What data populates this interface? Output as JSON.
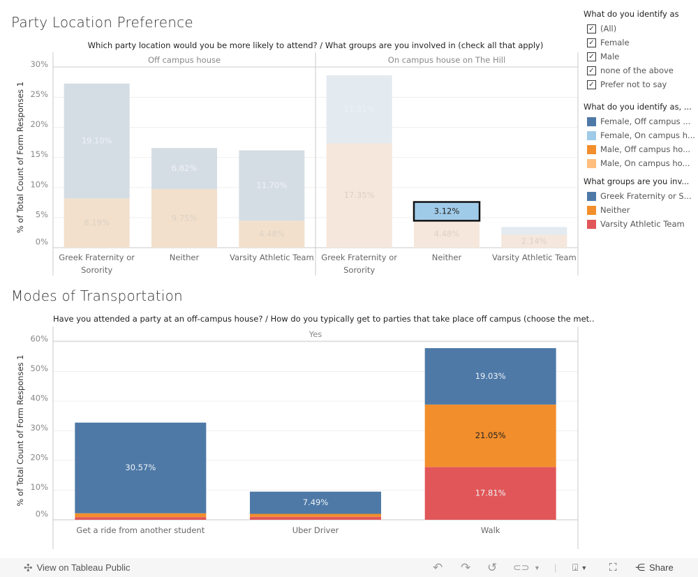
{
  "top_section": {
    "title": "Party Location Preference",
    "header": "Which party location would you be more likely to attend?  /  What groups are you involved in (check all that apply)",
    "y_axis_label": "% of Total Count of Form Responses 1",
    "y_ticks": [
      "0%",
      "5%",
      "10%",
      "15%",
      "20%",
      "25%",
      "30%"
    ],
    "panes": [
      "Off campus house",
      "On campus house on The Hill"
    ]
  },
  "bottom_section": {
    "title": "Modes of Transportation",
    "header": "Have you attended a party at an off-campus house?  /  How do you typically get to parties that take place off campus (choose the met..",
    "y_axis_label": "% of Total Count of Form Responses 1",
    "y_ticks": [
      "0%",
      "10%",
      "20%",
      "30%",
      "40%",
      "50%",
      "60%"
    ],
    "panes": [
      "Yes"
    ]
  },
  "filter": {
    "title": "What do you identify as",
    "options": [
      {
        "label": "(All)",
        "checked": true
      },
      {
        "label": "Female",
        "checked": true
      },
      {
        "label": "Male",
        "checked": true
      },
      {
        "label": "none of the above",
        "checked": true
      },
      {
        "label": "Prefer not to say",
        "checked": true
      }
    ]
  },
  "legend1": {
    "title": "What do you identify as, ...",
    "items": [
      {
        "label": "Female, Off campus ...",
        "color": "#4e79a7"
      },
      {
        "label": "Female, On campus h...",
        "color": "#a0cbe8"
      },
      {
        "label": "Male, Off campus ho...",
        "color": "#f28e2b"
      },
      {
        "label": "Male, On campus ho...",
        "color": "#ffbe7d"
      }
    ]
  },
  "legend2": {
    "title": "What groups are you inv...",
    "items": [
      {
        "label": "Greek Fraternity or S...",
        "color": "#4e79a7"
      },
      {
        "label": "Neither",
        "color": "#f28e2b"
      },
      {
        "label": "Varsity Athletic Team",
        "color": "#e15759"
      }
    ]
  },
  "toolbar": {
    "view_label": "View on Tableau Public",
    "share_label": "Share"
  },
  "chart_data": [
    {
      "type": "bar",
      "stacked": true,
      "title": "Party Location Preference",
      "xlabel": "",
      "ylabel": "% of Total Count of Form Responses 1",
      "ylim": [
        0,
        30
      ],
      "grid": true,
      "panes": [
        {
          "name": "Off campus house",
          "categories": [
            "Greek Fraternity or Sorority",
            "Neither",
            "Varsity Athletic Team"
          ],
          "series": [
            {
              "name": "Male",
              "color": "#f2e0cc",
              "values": [
                8.19,
                9.75,
                4.48
              ],
              "labels": [
                "8.19%",
                "9.75%",
                "4.48%"
              ]
            },
            {
              "name": "Female",
              "color": "#d5dde4",
              "values": [
                19.1,
                6.82,
                11.7
              ],
              "labels": [
                "19.10%",
                "6.82%",
                "11.70%"
              ]
            }
          ]
        },
        {
          "name": "On campus house on The Hill",
          "categories": [
            "Greek Fraternity or Sorority",
            "Neither",
            "Varsity Athletic Team"
          ],
          "series": [
            {
              "name": "Male",
              "color": "#f5e7dc",
              "values": [
                17.35,
                4.48,
                2.14
              ],
              "labels": [
                "17.35%",
                "4.48%",
                "2.14%"
              ]
            },
            {
              "name": "Female",
              "color": "#e3eaf0",
              "values": [
                11.31,
                3.12,
                1.3
              ],
              "labels": [
                "11.31%",
                "3.12%",
                ""
              ]
            }
          ],
          "highlighted": {
            "category": "Neither",
            "series": "Female",
            "color": "#a0cbe8"
          }
        }
      ]
    },
    {
      "type": "bar",
      "stacked": true,
      "title": "Modes of Transportation",
      "xlabel": "",
      "ylabel": "% of Total Count of Form Responses 1",
      "ylim": [
        0,
        60
      ],
      "grid": true,
      "panes": [
        {
          "name": "Yes",
          "categories": [
            "Get a ride from another student",
            "Uber Driver",
            "Walk"
          ],
          "series": [
            {
              "name": "Varsity Athletic Team",
              "color": "#e15759",
              "values": [
                0.9,
                1.0,
                17.81
              ],
              "labels": [
                "",
                "",
                "17.81%"
              ]
            },
            {
              "name": "Neither",
              "color": "#f28e2b",
              "values": [
                1.3,
                1.0,
                21.05
              ],
              "labels": [
                "",
                "",
                "21.05%"
              ]
            },
            {
              "name": "Greek Fraternity or Sorority",
              "color": "#4e79a7",
              "values": [
                30.57,
                7.49,
                19.03
              ],
              "labels": [
                "30.57%",
                "7.49%",
                "19.03%"
              ]
            }
          ]
        }
      ]
    }
  ]
}
